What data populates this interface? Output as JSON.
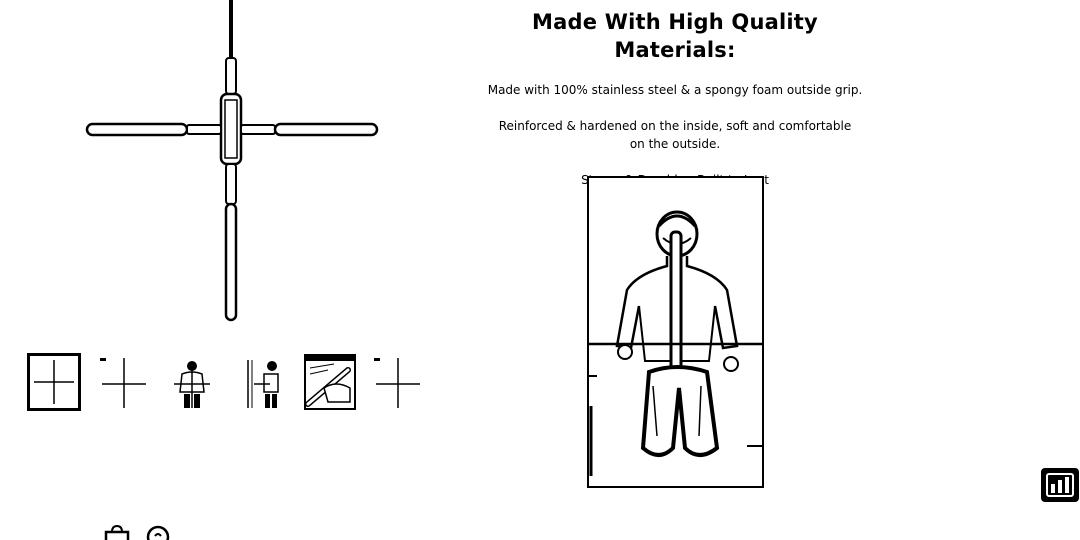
{
  "product": {
    "heading": "Made With High Quality Materials:",
    "material_text": "Made with 100% stainless steel & a spongy foam outside grip.",
    "reinforced_text": "Reinforced & hardened on the inside, soft and comfortable on the outside.",
    "tagline": "Strong & Durable - Built to Last"
  },
  "gallery": {
    "thumbnails": [
      {
        "icon": "cross-bar-grid-thumbnail",
        "active": true
      },
      {
        "icon": "cross-bar-thumbnail",
        "active": false
      },
      {
        "icon": "person-using-bar-thumbnail",
        "active": false
      },
      {
        "icon": "person-side-bar-thumbnail",
        "active": false
      },
      {
        "icon": "foam-grip-closeup-thumbnail",
        "active": false
      },
      {
        "icon": "cross-bar-thumbnail",
        "active": false
      }
    ]
  },
  "icons": {
    "bottom_left": [
      "bag-icon",
      "support-icon"
    ],
    "widget": "chart-widget-icon"
  }
}
